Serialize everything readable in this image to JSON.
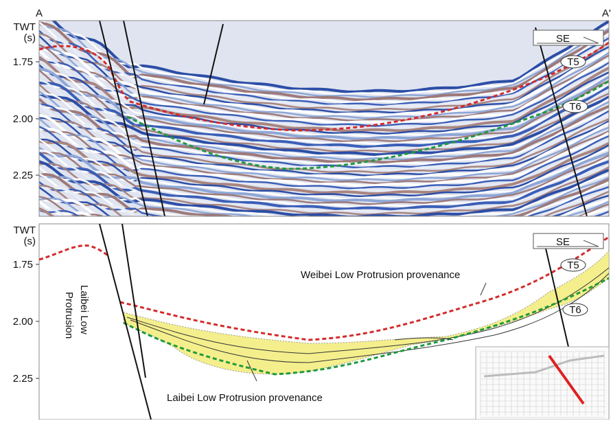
{
  "labels": {
    "start": "A",
    "end": "A'"
  },
  "panels": [
    {
      "axis_title": [
        "TWT",
        "(s)"
      ],
      "ticks": [
        "1.75",
        "2.00",
        "2.25"
      ],
      "direction": "SE",
      "horizons": [
        "T5",
        "T6"
      ]
    },
    {
      "axis_title": [
        "TWT",
        "(s)"
      ],
      "ticks": [
        "1.75",
        "2.00",
        "2.25"
      ],
      "direction": "SE",
      "horizons": [
        "T5",
        "T6"
      ],
      "annotations": [
        "Weibei Low Protrusion provenance",
        "Laibei Low Protrusion provenance"
      ],
      "structure": [
        "Laibei Low",
        "Protrusion"
      ]
    }
  ]
}
